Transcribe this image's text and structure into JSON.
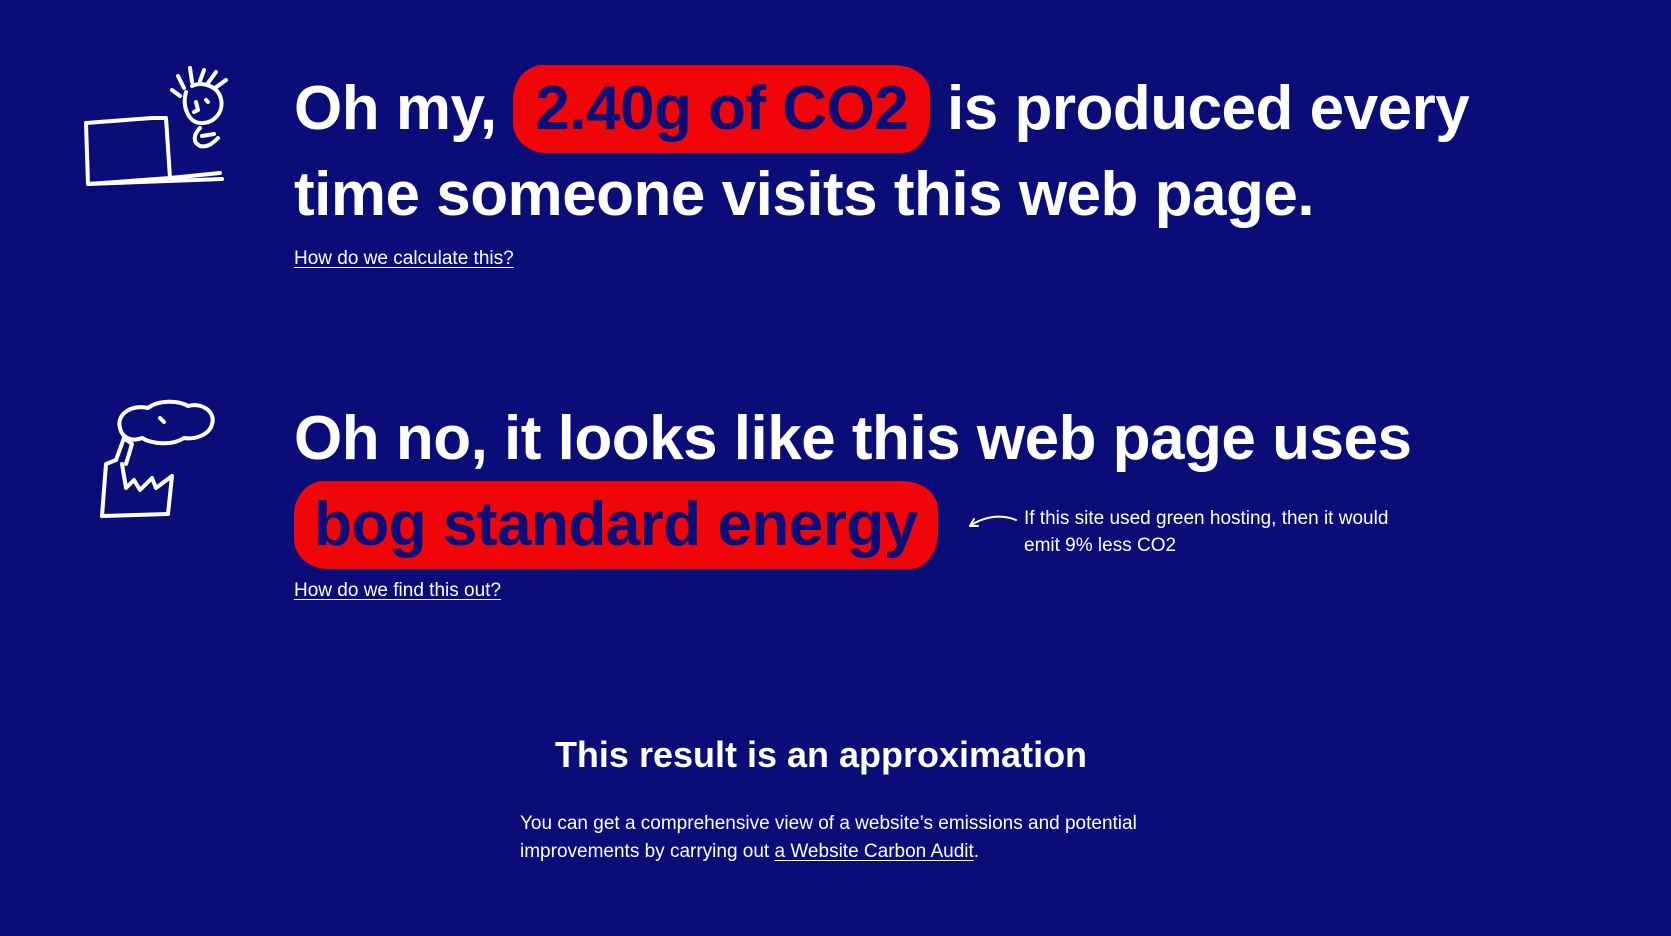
{
  "colors": {
    "background": "#0a0d78",
    "highlight": "#f00508",
    "text": "#ffffff"
  },
  "emissions": {
    "icon": "laptop-person-icon",
    "prefix": "Oh my, ",
    "highlight": "2.40g of CO2",
    "suffix_line1": " is produced every",
    "line2": "time someone visits this web page.",
    "link_label": "How do we calculate this?"
  },
  "energy": {
    "icon": "factory-chimney-icon",
    "line1": "Oh no, it looks like this web page uses",
    "highlight": "bog standard energy",
    "note": "If this site used green hosting, then it would emit 9% less CO2",
    "link_label": "How do we find this out?"
  },
  "approximation": {
    "title": "This result is an approximation",
    "text_before_link": "You can get a comprehensive view of a website’s emissions and potential improvements by carrying out ",
    "link_label": "a Website Carbon Audit",
    "text_after_link": "."
  }
}
